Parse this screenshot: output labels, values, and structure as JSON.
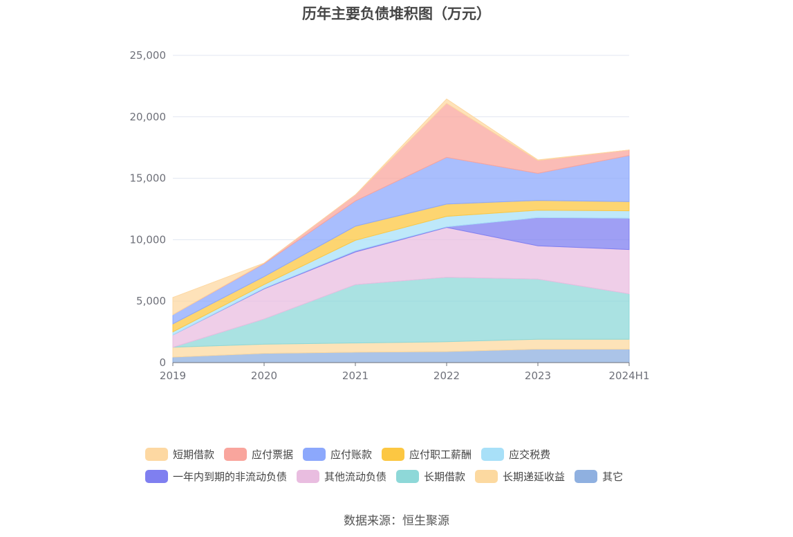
{
  "chart_data": {
    "type": "area",
    "stacked": true,
    "title": "历年主要负债堆积图（万元）",
    "categories": [
      "2019",
      "2020",
      "2021",
      "2022",
      "2023",
      "2024H1"
    ],
    "ylim": [
      0,
      25000
    ],
    "yticks": [
      "0",
      "5,000",
      "10,000",
      "15,000",
      "20,000",
      "25,000"
    ],
    "grid": true,
    "legend_position": "bottom",
    "series": [
      {
        "name": "其它",
        "color": "#8fb0e0",
        "values": [
          450,
          750,
          850,
          900,
          1100,
          1100
        ]
      },
      {
        "name": "长期递延收益",
        "color": "#fcd9a0",
        "values": [
          800,
          750,
          750,
          800,
          800,
          800
        ]
      },
      {
        "name": "长期借款",
        "color": "#8ed8d8",
        "values": [
          0,
          2050,
          4750,
          5250,
          4900,
          3700
        ]
      },
      {
        "name": "其他流动负债",
        "color": "#e9bde0",
        "values": [
          1000,
          2450,
          2650,
          4050,
          2700,
          3600
        ]
      },
      {
        "name": "一年内到期的非流动负债",
        "color": "#7f7ff0",
        "values": [
          0,
          50,
          100,
          50,
          2300,
          2550
        ]
      },
      {
        "name": "应交税费",
        "color": "#a8e0f8",
        "values": [
          250,
          300,
          850,
          850,
          600,
          600
        ]
      },
      {
        "name": "应付职工薪酬",
        "color": "#fcc742",
        "values": [
          650,
          650,
          1150,
          1000,
          800,
          750
        ]
      },
      {
        "name": "应付账款",
        "color": "#8ca8fc",
        "values": [
          750,
          1050,
          2050,
          3800,
          2200,
          3750
        ]
      },
      {
        "name": "应付票据",
        "color": "#f9a59d",
        "values": [
          0,
          50,
          500,
          4400,
          1050,
          450
        ]
      },
      {
        "name": "短期借款",
        "color": "#fdd8a2",
        "values": [
          1400,
          0,
          0,
          350,
          50,
          0
        ]
      }
    ]
  },
  "legend": {
    "row1": [
      "短期借款",
      "应付票据",
      "应付账款",
      "应付职工薪酬",
      "应交税费"
    ],
    "row2": [
      "一年内到期的非流动负债",
      "其他流动负债",
      "长期借款",
      "长期递延收益",
      "其它"
    ]
  },
  "source": "数据来源：恒生聚源"
}
